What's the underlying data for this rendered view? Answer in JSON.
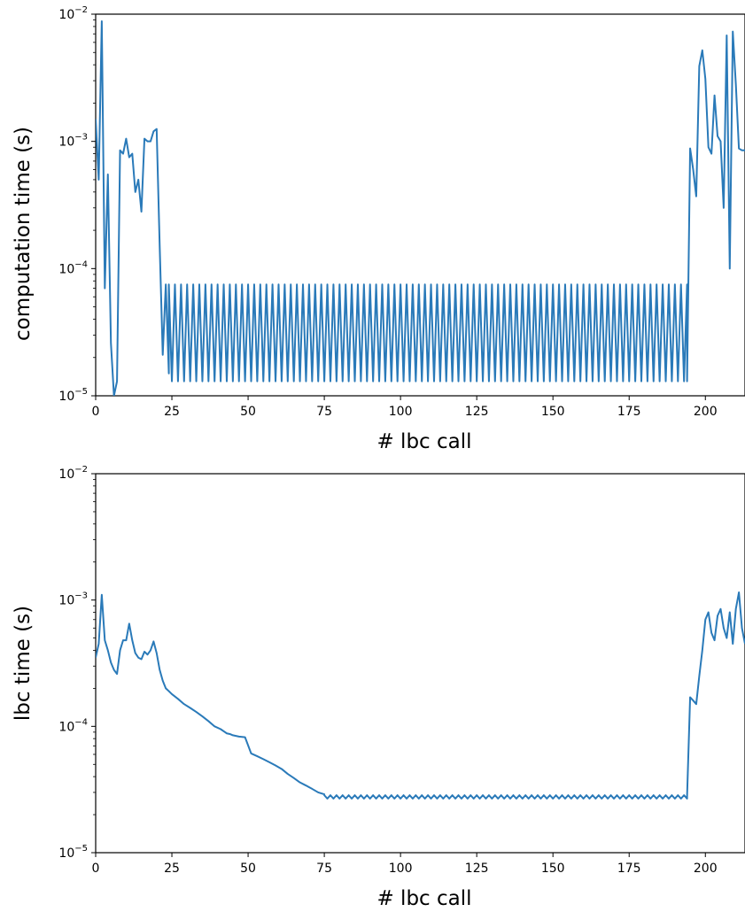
{
  "figure": {
    "line_color": "#2a7ab9"
  },
  "chart_data": [
    {
      "type": "line",
      "ylabel": "computation time (s)",
      "xlabel": "# lbc call",
      "yscale": "log",
      "xlim": [
        0,
        213
      ],
      "ylim": [
        1e-05,
        0.01
      ],
      "xticks": [
        0,
        25,
        50,
        75,
        100,
        125,
        150,
        175,
        200
      ],
      "yticks": [
        {
          "value": 1e-05,
          "base": "10",
          "exp": "−5"
        },
        {
          "value": 0.0001,
          "base": "10",
          "exp": "−4"
        },
        {
          "value": 0.001,
          "base": "10",
          "exp": "−3"
        },
        {
          "value": 0.01,
          "base": "10",
          "exp": "−2"
        }
      ],
      "grid": false,
      "series": [
        {
          "segments": [
            {
              "x": [
                0,
                1,
                2,
                3,
                4,
                5,
                6,
                7,
                8,
                9,
                10,
                11,
                12,
                13,
                14,
                15,
                16,
                17,
                18,
                19,
                20,
                21,
                22,
                23,
                24
              ],
              "y": [
                0.0015,
                0.0005,
                0.0088,
                7e-05,
                0.00055,
                2.6e-05,
                1e-05,
                1.3e-05,
                0.00085,
                0.0008,
                0.00105,
                0.00075,
                0.0008,
                0.0004,
                0.0005,
                0.00028,
                0.00105,
                0.001,
                0.001,
                0.0012,
                0.00125,
                0.00015,
                2.1e-05,
                7.5e-05,
                1.5e-05
              ]
            },
            {
              "x_start": 24,
              "x_end": 194,
              "alternating": [
                7.5e-05,
                1.3e-05
              ]
            },
            {
              "x": [
                194,
                195,
                196,
                197,
                198,
                199,
                200,
                201,
                202,
                203,
                204,
                205,
                206,
                207,
                208,
                209,
                210,
                211,
                212,
                213
              ],
              "y": [
                1.3e-05,
                0.00088,
                0.0006,
                0.00037,
                0.0039,
                0.0052,
                0.0031,
                0.0009,
                0.0008,
                0.0023,
                0.0011,
                0.001,
                0.0003,
                0.0068,
                0.0001,
                0.0073,
                0.0028,
                0.00088,
                0.00085,
                0.00085
              ]
            }
          ]
        }
      ]
    },
    {
      "type": "line",
      "ylabel": "lbc time (s)",
      "xlabel": "# lbc call",
      "yscale": "log",
      "xlim": [
        0,
        213
      ],
      "ylim": [
        1e-05,
        0.01
      ],
      "xticks": [
        0,
        25,
        50,
        75,
        100,
        125,
        150,
        175,
        200
      ],
      "yticks": [
        {
          "value": 1e-05,
          "base": "10",
          "exp": "−5"
        },
        {
          "value": 0.0001,
          "base": "10",
          "exp": "−4"
        },
        {
          "value": 0.001,
          "base": "10",
          "exp": "−3"
        },
        {
          "value": 0.01,
          "base": "10",
          "exp": "−2"
        }
      ],
      "grid": false,
      "series": [
        {
          "segments": [
            {
              "x": [
                0,
                1,
                2,
                3,
                4,
                5,
                6,
                7,
                8,
                9,
                10,
                11,
                12,
                13,
                14,
                15,
                16,
                17,
                18,
                19,
                20,
                21,
                22,
                23,
                24,
                25,
                27,
                29,
                31,
                33,
                35,
                37,
                39,
                41,
                43,
                44,
                45,
                47,
                49,
                51,
                53,
                55,
                57,
                59,
                61,
                63,
                65,
                67,
                69,
                71,
                73,
                75
              ],
              "y": [
                0.00035,
                0.00045,
                0.0011,
                0.00048,
                0.0004,
                0.00032,
                0.00028,
                0.00026,
                0.0004,
                0.00048,
                0.00048,
                0.00065,
                0.00048,
                0.00038,
                0.00035,
                0.00034,
                0.00039,
                0.00037,
                0.0004,
                0.00047,
                0.00038,
                0.00028,
                0.00023,
                0.0002,
                0.00019,
                0.00018,
                0.000165,
                0.00015,
                0.00014,
                0.00013,
                0.00012,
                0.00011,
                0.0001,
                9.5e-05,
                8.8e-05,
                8.7e-05,
                8.5e-05,
                8.3e-05,
                8.2e-05,
                6.1e-05,
                5.8e-05,
                5.5e-05,
                5.2e-05,
                4.9e-05,
                4.6e-05,
                4.2e-05,
                3.9e-05,
                3.6e-05,
                3.4e-05,
                3.2e-05,
                3e-05,
                2.9e-05
              ]
            },
            {
              "x_start": 75,
              "x_end": 194,
              "alternating": [
                2.85e-05,
                2.68e-05
              ]
            },
            {
              "x": [
                194,
                195,
                196,
                197,
                198,
                199,
                200,
                201,
                202,
                203,
                204,
                205,
                206,
                207,
                208,
                209,
                210,
                211,
                212,
                213
              ],
              "y": [
                2.8e-05,
                0.00017,
                0.00016,
                0.00015,
                0.00025,
                0.0004,
                0.0007,
                0.0008,
                0.00055,
                0.00048,
                0.00075,
                0.00085,
                0.0006,
                0.0005,
                0.0008,
                0.00045,
                0.00085,
                0.00115,
                0.0006,
                0.00045
              ]
            }
          ]
        }
      ]
    }
  ]
}
